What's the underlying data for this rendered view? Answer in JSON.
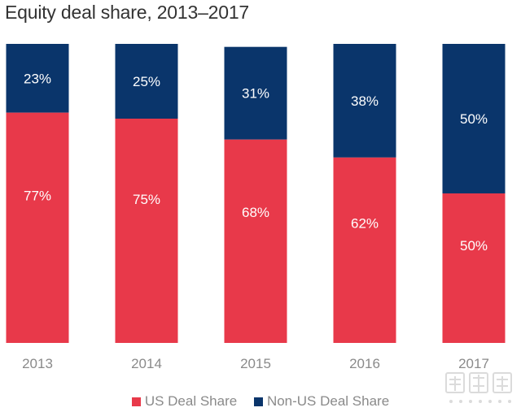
{
  "chart_data": {
    "type": "bar",
    "stacked": true,
    "percent": true,
    "title": "Equity deal share, 2013–2017",
    "categories": [
      "2013",
      "2014",
      "2015",
      "2016",
      "2017"
    ],
    "series": [
      {
        "name": "US Deal Share",
        "values": [
          77,
          75,
          68,
          62,
          50
        ],
        "labels": [
          "77%",
          "75%",
          "68%",
          "62%",
          "50%"
        ],
        "color": "#e8394a"
      },
      {
        "name": "Non-US Deal Share",
        "values": [
          23,
          25,
          31,
          38,
          50
        ],
        "labels": [
          "23%",
          "25%",
          "31%",
          "38%",
          "50%"
        ],
        "color": "#0a356b"
      }
    ],
    "ylim": [
      0,
      100
    ],
    "grid": false,
    "legend_position": "bottom-center"
  }
}
